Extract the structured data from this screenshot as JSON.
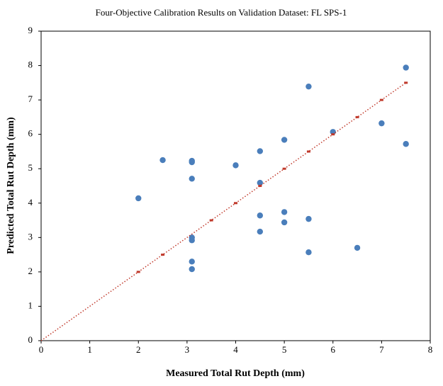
{
  "chart_data": {
    "type": "scatter",
    "title": "Four-Objective Calibration Results on Validation Dataset: FL SPS-1",
    "x_label": "Measured Total Rut Depth (mm)",
    "y_label": "Predicted Total Rut Depth (mm)",
    "xlim": [
      0,
      8
    ],
    "xticks": [
      0,
      1,
      2,
      3,
      4,
      5,
      6,
      7,
      8
    ],
    "ylim": [
      0,
      9
    ],
    "yticks": [
      0,
      1,
      2,
      3,
      4,
      5,
      6,
      7,
      8,
      9
    ],
    "series": [
      {
        "color": "#4a7ebb",
        "marker": "dot",
        "x": [
          2,
          2.5,
          3.1,
          3.1,
          3.1,
          3.1,
          3.1,
          3.1,
          3.1,
          4,
          4.5,
          4.5,
          4.5,
          4.5,
          5,
          5,
          5,
          5.5,
          5.5,
          5.5,
          6,
          6.5,
          7,
          7.5,
          7.5
        ],
        "values": [
          4.14,
          5.25,
          5.23,
          5.19,
          4.71,
          3.0,
          2.92,
          2.3,
          2.08,
          5.1,
          5.51,
          4.59,
          3.64,
          3.17,
          5.84,
          3.74,
          3.44,
          7.39,
          3.54,
          2.57,
          6.07,
          2.7,
          6.32,
          7.94,
          5.72
        ]
      },
      {
        "color": "#c0392b",
        "marker": "dotted-line",
        "x": [
          0,
          2,
          2.5,
          3.5,
          4,
          4.5,
          5,
          5.5,
          6,
          6.5,
          7,
          7.5
        ],
        "values": [
          0,
          2,
          2.5,
          3.5,
          4,
          4.5,
          5,
          5.5,
          6,
          6.5,
          7,
          7.5
        ]
      }
    ]
  }
}
